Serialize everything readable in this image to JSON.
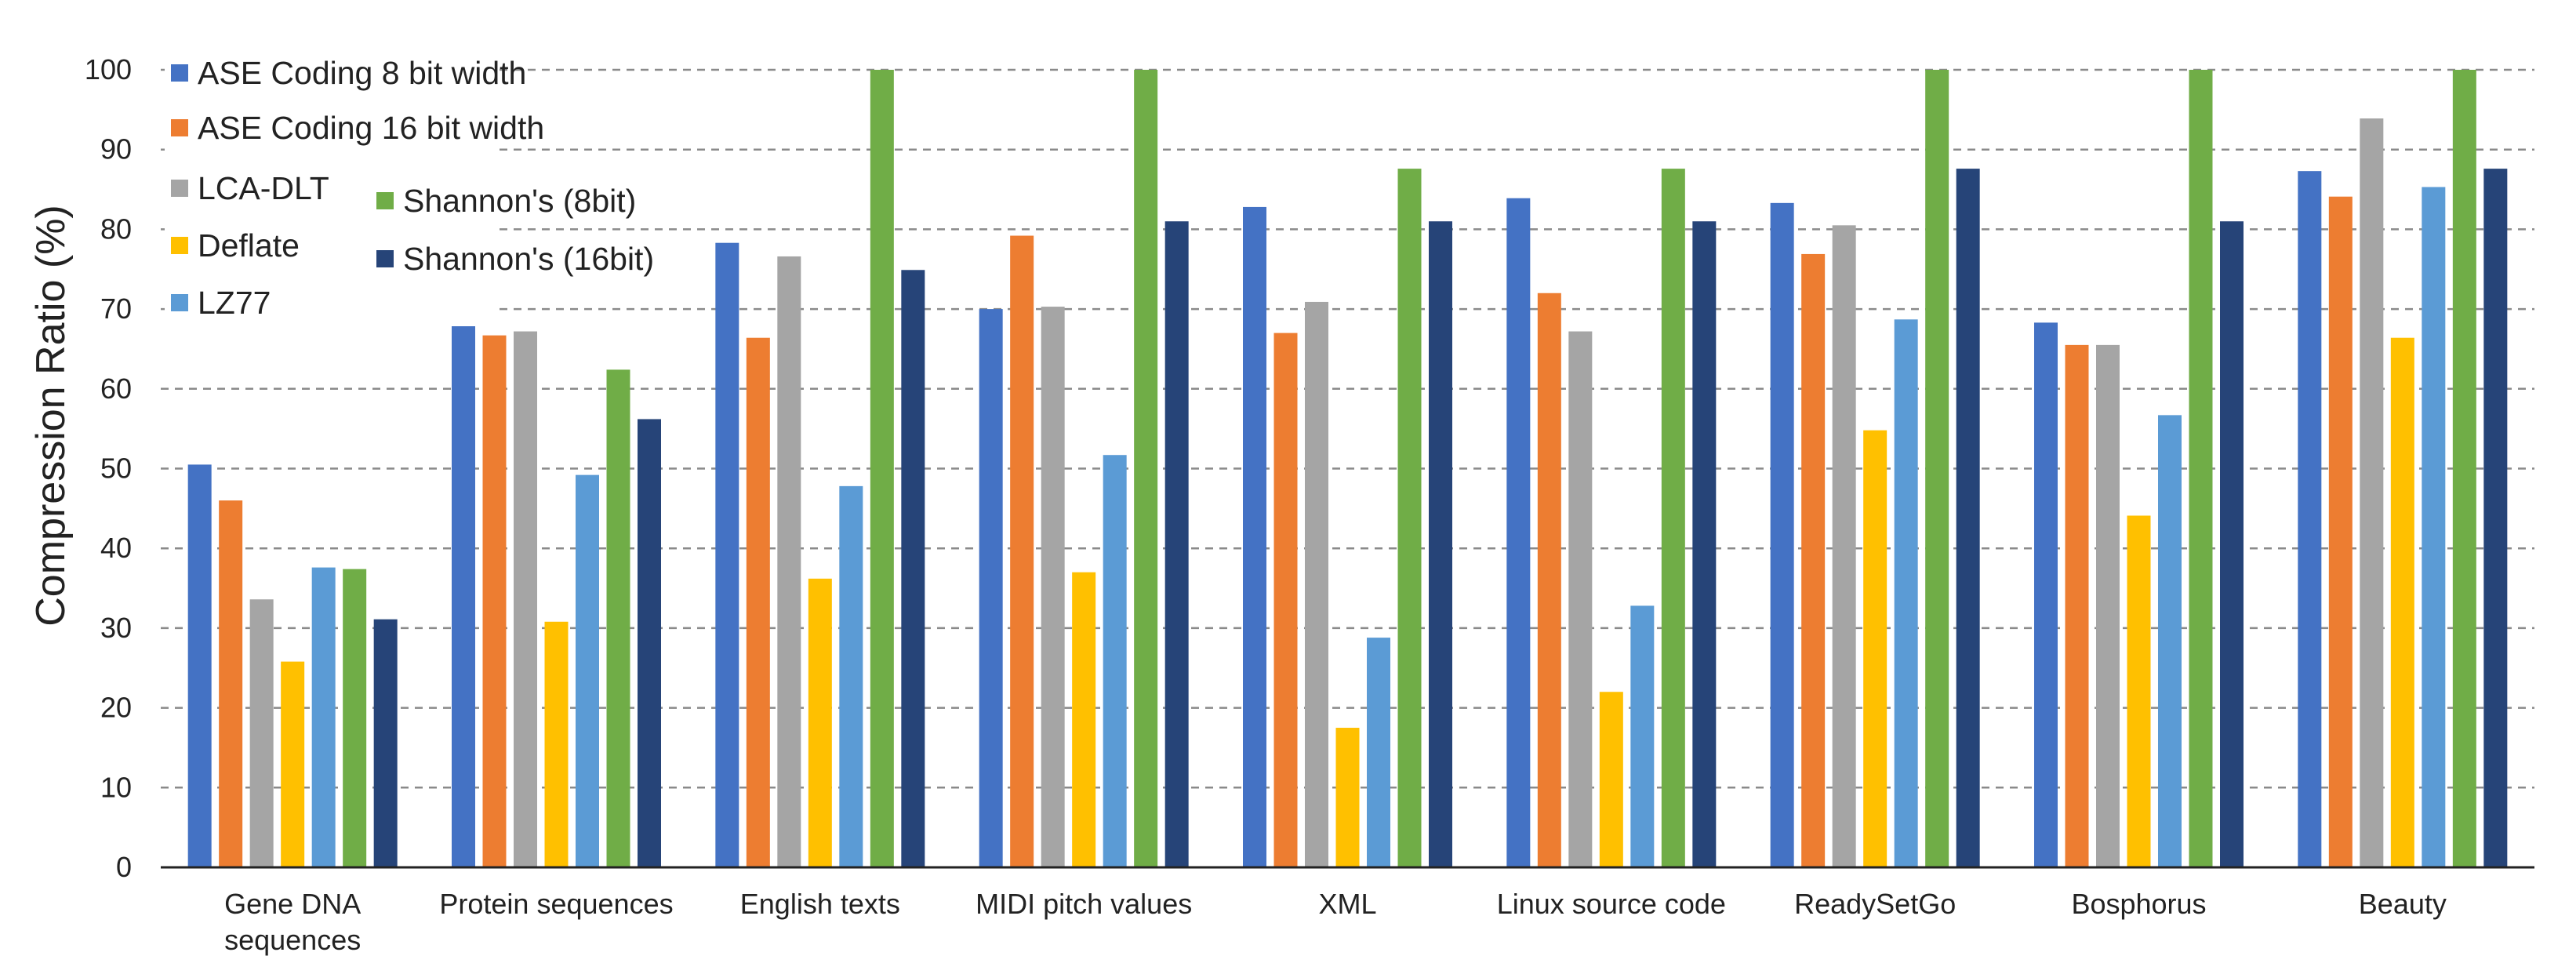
{
  "chart_data": {
    "type": "bar",
    "title": "",
    "xlabel": "",
    "ylabel": "Compression Ratio (%)",
    "ylim": [
      0,
      100
    ],
    "yticks": [
      0,
      10,
      20,
      30,
      40,
      50,
      60,
      70,
      80,
      90,
      100
    ],
    "grid": true,
    "legend_position": "top-left",
    "categories": [
      "Gene DNA sequences",
      "Protein sequences",
      "English texts",
      "MIDI pitch values",
      "XML",
      "Linux source code",
      "ReadySetGo",
      "Bosphorus",
      "Beauty"
    ],
    "series": [
      {
        "name": "ASE Coding 8 bit width",
        "color": "#4472C4",
        "values": [
          50.5,
          72.8,
          78.3,
          70.0,
          82.8,
          83.9,
          83.3,
          68.3,
          87.3
        ]
      },
      {
        "name": "ASE Coding 16 bit width",
        "color": "#ED7D31",
        "values": [
          46.0,
          66.7,
          66.4,
          79.2,
          67.0,
          72.0,
          76.9,
          65.5,
          84.1
        ]
      },
      {
        "name": "LCA-DLT",
        "color": "#A5A5A5",
        "values": [
          33.6,
          67.2,
          76.6,
          70.3,
          70.9,
          67.2,
          80.5,
          65.5,
          93.9
        ]
      },
      {
        "name": "Deflate",
        "color": "#FFC000",
        "values": [
          25.8,
          30.8,
          36.2,
          37.0,
          17.5,
          22.0,
          54.8,
          44.1,
          66.4
        ]
      },
      {
        "name": "LZ77",
        "color": "#5B9BD5",
        "values": [
          37.6,
          49.2,
          47.8,
          51.7,
          28.8,
          32.8,
          68.7,
          56.7,
          85.3
        ]
      },
      {
        "name": "Shannon's (8bit)",
        "color": "#70AD47",
        "values": [
          37.4,
          62.4,
          100.0,
          100.0,
          87.6,
          87.6,
          100.0,
          100.0,
          100.0
        ]
      },
      {
        "name": "Shannon's (16bit)",
        "color": "#264478",
        "values": [
          31.1,
          56.2,
          74.9,
          81.0,
          81.0,
          81.0,
          87.6,
          81.0,
          87.6
        ]
      }
    ]
  }
}
